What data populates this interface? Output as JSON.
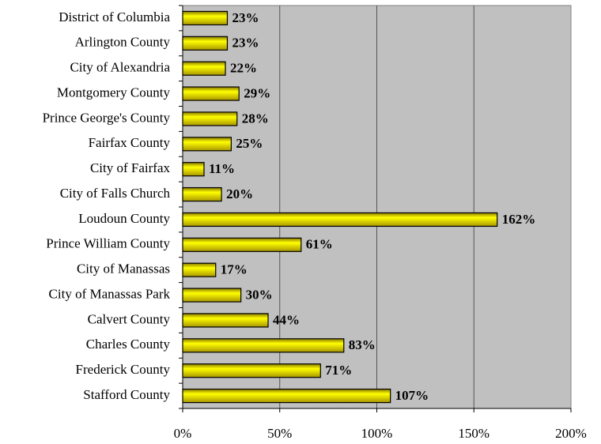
{
  "chart_data": {
    "type": "bar",
    "orientation": "horizontal",
    "categories": [
      "District of Columbia",
      "Arlington County",
      "City of Alexandria",
      "Montgomery County",
      "Prince George's County",
      "Fairfax County",
      "City of Fairfax",
      "City of Falls Church",
      "Loudoun County",
      "Prince William County",
      "City of Manassas",
      "City of Manassas Park",
      "Calvert County",
      "Charles County",
      "Frederick County",
      "Stafford County"
    ],
    "values": [
      23,
      23,
      22,
      29,
      28,
      25,
      11,
      20,
      162,
      61,
      17,
      30,
      44,
      83,
      71,
      107
    ],
    "value_labels": [
      "23%",
      "23%",
      "22%",
      "29%",
      "28%",
      "25%",
      "11%",
      "20%",
      "162%",
      "61%",
      "17%",
      "30%",
      "44%",
      "83%",
      "71%",
      "107%"
    ],
    "color": "#ffff00",
    "xlim": [
      0,
      200
    ],
    "xticks": [
      {
        "value": 0,
        "label": "0%"
      },
      {
        "value": 50,
        "label": "50%"
      },
      {
        "value": 100,
        "label": "100%"
      },
      {
        "value": 150,
        "label": "150%"
      },
      {
        "value": 200,
        "label": "200%"
      }
    ],
    "grid": true
  }
}
